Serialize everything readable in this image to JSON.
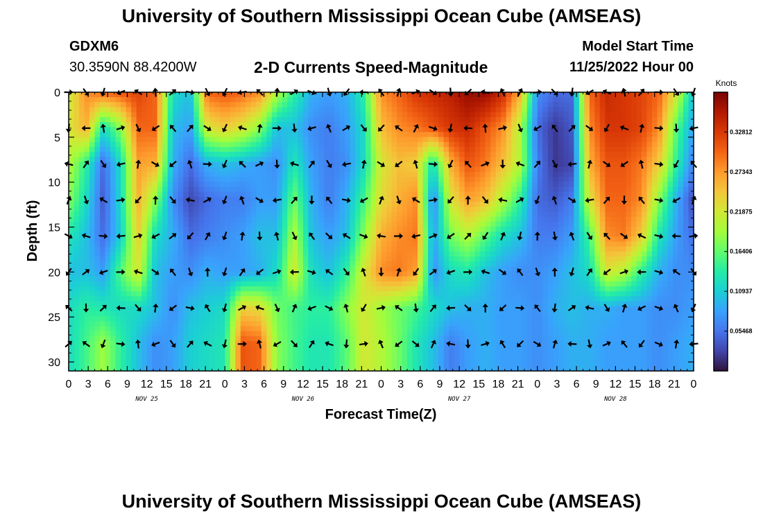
{
  "header": {
    "title": "University of Southern Mississippi Ocean Cube (AMSEAS)",
    "station_id": "GDXM6",
    "station_coords": "30.3590N  88.4200W",
    "subtitle": "2-D Currents Speed-Magnitude",
    "model_start_label": "Model Start Time",
    "model_start_value": "11/25/2022 Hour 00"
  },
  "footer": {
    "repeated_title": "University of Southern Mississippi Ocean Cube (AMSEAS)"
  },
  "chart_data": {
    "type": "heatmap",
    "title": "2-D Currents Speed-Magnitude",
    "xlabel": "Forecast Time(Z)",
    "ylabel": "Depth (ft)",
    "xlim": [
      0,
      96
    ],
    "ylim": [
      0,
      31
    ],
    "y_inverted": true,
    "x_ticks": [
      0,
      3,
      6,
      9,
      12,
      15,
      18,
      21,
      24,
      27,
      30,
      33,
      36,
      39,
      42,
      45,
      48,
      51,
      54,
      57,
      60,
      63,
      66,
      69,
      72,
      75,
      78,
      81,
      84,
      87,
      90,
      93,
      96
    ],
    "x_tick_labels": [
      "0",
      "3",
      "6",
      "9",
      "12",
      "15",
      "18",
      "21",
      "0",
      "3",
      "6",
      "9",
      "12",
      "15",
      "18",
      "21",
      "0",
      "3",
      "6",
      "9",
      "12",
      "15",
      "18",
      "21",
      "0",
      "3",
      "6",
      "9",
      "12",
      "15",
      "18",
      "21",
      "0"
    ],
    "day_labels": [
      {
        "label": "NOV 25",
        "x": 12
      },
      {
        "label": "NOV 26",
        "x": 36
      },
      {
        "label": "NOV 27",
        "x": 60
      },
      {
        "label": "NOV 28",
        "x": 84
      }
    ],
    "y_ticks": [
      0,
      5,
      10,
      15,
      20,
      25,
      30
    ],
    "y_tick_labels": [
      "0",
      "5",
      "10",
      "15",
      "20",
      "25",
      "30"
    ],
    "colorbar": {
      "unit": "Knots",
      "min": 0.0,
      "max": 0.3828,
      "ticks": [
        0.05468,
        0.10937,
        0.16406,
        0.21875,
        0.27343,
        0.32812
      ],
      "tick_labels": [
        "0.05468",
        "0.10937",
        "0.16406",
        "0.21875",
        "0.27343",
        "0.32812"
      ],
      "colors": [
        "#30123b",
        "#4145ab",
        "#4675ed",
        "#39a2fc",
        "#1bcfd4",
        "#24eca6",
        "#61fc6c",
        "#a4fc3b",
        "#d1e834",
        "#f3c63a",
        "#fe9b2d",
        "#f36315",
        "#d93806",
        "#b11901",
        "#7a0402"
      ]
    },
    "speed_grid": {
      "columns": 37,
      "rows": 8,
      "time_step_hours": 2.6667,
      "depths_ft": [
        0,
        4,
        8,
        12,
        16,
        20,
        24,
        28
      ],
      "values": [
        [
          0.21,
          0.28,
          0.3,
          0.31,
          0.32,
          0.3,
          0.12,
          0.1,
          0.3,
          0.31,
          0.3,
          0.28,
          0.2,
          0.14,
          0.09,
          0.08,
          0.09,
          0.14,
          0.28,
          0.3,
          0.33,
          0.34,
          0.35,
          0.37,
          0.37,
          0.34,
          0.26,
          0.07,
          0.05,
          0.05,
          0.3,
          0.34,
          0.33,
          0.32,
          0.3,
          0.22,
          0.1
        ],
        [
          0.22,
          0.26,
          0.12,
          0.18,
          0.3,
          0.3,
          0.1,
          0.08,
          0.22,
          0.24,
          0.22,
          0.18,
          0.1,
          0.1,
          0.07,
          0.06,
          0.08,
          0.12,
          0.25,
          0.28,
          0.29,
          0.31,
          0.33,
          0.34,
          0.31,
          0.28,
          0.2,
          0.05,
          0.02,
          0.04,
          0.28,
          0.33,
          0.33,
          0.32,
          0.28,
          0.16,
          0.08
        ],
        [
          0.2,
          0.14,
          0.05,
          0.12,
          0.27,
          0.26,
          0.09,
          0.05,
          0.09,
          0.1,
          0.09,
          0.08,
          0.07,
          0.13,
          0.08,
          0.06,
          0.07,
          0.12,
          0.22,
          0.25,
          0.24,
          0.12,
          0.26,
          0.31,
          0.29,
          0.25,
          0.2,
          0.06,
          0.02,
          0.03,
          0.26,
          0.31,
          0.31,
          0.29,
          0.24,
          0.14,
          0.06
        ],
        [
          0.18,
          0.12,
          0.04,
          0.12,
          0.26,
          0.18,
          0.07,
          0.03,
          0.05,
          0.06,
          0.06,
          0.08,
          0.08,
          0.17,
          0.09,
          0.06,
          0.09,
          0.15,
          0.23,
          0.26,
          0.28,
          0.06,
          0.22,
          0.27,
          0.25,
          0.2,
          0.14,
          0.05,
          0.04,
          0.06,
          0.22,
          0.3,
          0.3,
          0.28,
          0.18,
          0.09,
          0.03
        ],
        [
          0.13,
          0.1,
          0.05,
          0.11,
          0.24,
          0.12,
          0.09,
          0.05,
          0.06,
          0.07,
          0.08,
          0.1,
          0.1,
          0.2,
          0.1,
          0.08,
          0.1,
          0.18,
          0.26,
          0.28,
          0.29,
          0.08,
          0.17,
          0.2,
          0.16,
          0.12,
          0.1,
          0.06,
          0.06,
          0.08,
          0.15,
          0.28,
          0.29,
          0.24,
          0.13,
          0.08,
          0.05
        ],
        [
          0.1,
          0.1,
          0.08,
          0.16,
          0.22,
          0.1,
          0.08,
          0.07,
          0.09,
          0.08,
          0.08,
          0.09,
          0.12,
          0.22,
          0.12,
          0.1,
          0.14,
          0.22,
          0.28,
          0.29,
          0.27,
          0.07,
          0.12,
          0.13,
          0.1,
          0.08,
          0.07,
          0.07,
          0.08,
          0.1,
          0.12,
          0.22,
          0.2,
          0.14,
          0.09,
          0.07,
          0.07
        ],
        [
          0.12,
          0.14,
          0.13,
          0.12,
          0.12,
          0.1,
          0.07,
          0.1,
          0.11,
          0.12,
          0.24,
          0.23,
          0.17,
          0.15,
          0.14,
          0.14,
          0.18,
          0.22,
          0.19,
          0.17,
          0.15,
          0.12,
          0.1,
          0.09,
          0.09,
          0.08,
          0.08,
          0.07,
          0.09,
          0.1,
          0.09,
          0.09,
          0.08,
          0.08,
          0.07,
          0.07,
          0.08
        ],
        [
          0.12,
          0.15,
          0.19,
          0.14,
          0.1,
          0.07,
          0.08,
          0.11,
          0.12,
          0.13,
          0.31,
          0.3,
          0.18,
          0.15,
          0.13,
          0.13,
          0.16,
          0.22,
          0.2,
          0.17,
          0.13,
          0.1,
          0.06,
          0.08,
          0.09,
          0.08,
          0.08,
          0.07,
          0.08,
          0.09,
          0.09,
          0.08,
          0.08,
          0.08,
          0.07,
          0.08,
          0.09
        ]
      ]
    },
    "vector_rows_ft": [
      0,
      4,
      8,
      12,
      16,
      20,
      24,
      28
    ],
    "vector_count_per_row": 37,
    "vector_note": "Black arrows show current direction at each time/depth"
  }
}
